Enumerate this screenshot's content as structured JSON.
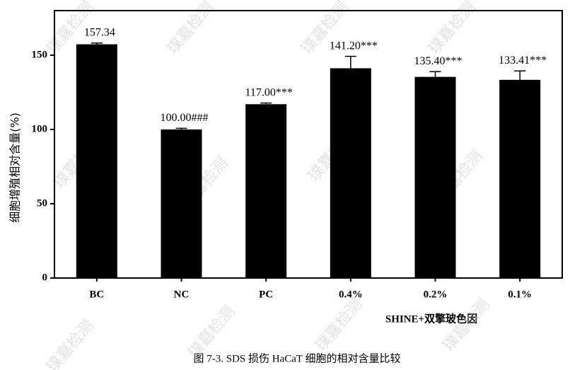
{
  "chart_data": {
    "type": "bar",
    "title": "图 7-3. SDS 损伤 HaCaT 细胞的相对含量比较",
    "y_label": "细胞增殖相对含量(%)",
    "x_label": "SHINE+双擎玻色因",
    "watermark": "璞嘉检测",
    "categories": [
      "BC",
      "NC",
      "PC",
      "0.4%",
      "0.2%",
      "0.1%"
    ],
    "values": [
      157.34,
      100,
      117,
      141.2,
      135.4,
      133.41
    ],
    "value_labels": [
      "157.34",
      "100.00###",
      "117.00***",
      "141.20***",
      "135.40***",
      "133.41***"
    ],
    "errors": [
      0.8,
      0.8,
      0.8,
      8,
      3.5,
      6
    ],
    "color": "#000000",
    "ylim": [
      0,
      180
    ],
    "yticks": [
      0,
      50,
      100,
      150
    ]
  }
}
